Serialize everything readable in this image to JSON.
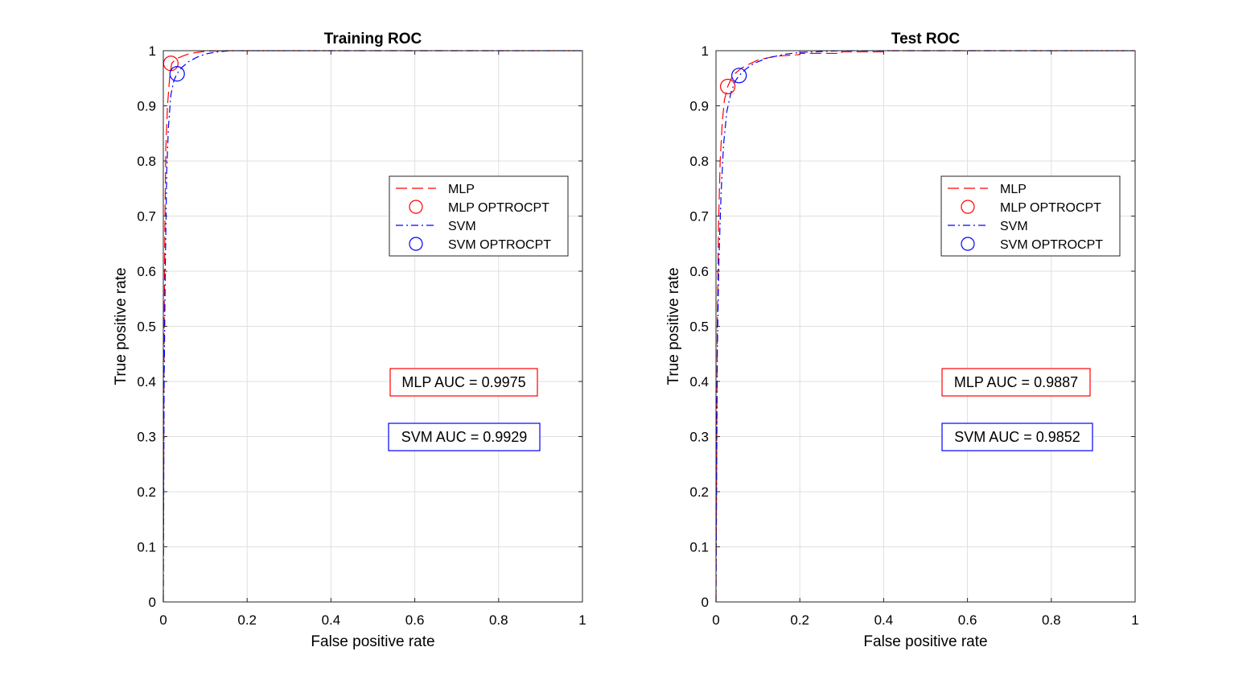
{
  "colors": {
    "mlp": "#ff0000",
    "svm": "#0000ff",
    "grid": "#dfdfdf",
    "axis": "#262626"
  },
  "chart_data": [
    {
      "type": "line",
      "title": "Training ROC",
      "xlabel": "False positive rate",
      "ylabel": "True positive rate",
      "xlim": [
        0,
        1
      ],
      "ylim": [
        0,
        1
      ],
      "grid": true,
      "xticks": [
        "0",
        "0.2",
        "0.4",
        "0.6",
        "0.8",
        "1"
      ],
      "yticks": [
        "0",
        "0.1",
        "0.2",
        "0.3",
        "0.4",
        "0.5",
        "0.6",
        "0.7",
        "0.8",
        "0.9",
        "1"
      ],
      "legend_position": "middle-right",
      "legend": [
        "MLP",
        "MLP OPTROCPT",
        "SVM",
        "SVM OPTROCPT"
      ],
      "series": [
        {
          "name": "MLP",
          "style": "dashed",
          "color": "#ff0000",
          "x": [
            0,
            0.002,
            0.004,
            0.006,
            0.01,
            0.015,
            0.02,
            0.03,
            0.045,
            0.06,
            0.08,
            0.1,
            0.15,
            0.3,
            0.6,
            1
          ],
          "y": [
            0,
            0.5,
            0.7,
            0.82,
            0.9,
            0.95,
            0.977,
            0.985,
            0.99,
            0.994,
            0.997,
            0.999,
            1,
            1,
            1,
            1
          ]
        },
        {
          "name": "SVM",
          "style": "dashdot",
          "color": "#0000ff",
          "x": [
            0,
            0.002,
            0.005,
            0.008,
            0.012,
            0.018,
            0.025,
            0.032,
            0.045,
            0.06,
            0.08,
            0.1,
            0.13,
            0.16,
            0.3,
            0.6,
            1
          ],
          "y": [
            0,
            0.4,
            0.62,
            0.78,
            0.86,
            0.92,
            0.945,
            0.958,
            0.97,
            0.98,
            0.988,
            0.994,
            0.998,
            1,
            1,
            1,
            1
          ]
        }
      ],
      "optimal_points": [
        {
          "name": "MLP OPTROCPT",
          "x": 0.018,
          "y": 0.977,
          "color": "#ff0000"
        },
        {
          "name": "SVM OPTROCPT",
          "x": 0.033,
          "y": 0.958,
          "color": "#0000ff"
        }
      ],
      "annotations": [
        {
          "text": "MLP AUC = 0.9975",
          "color": "#ff0000"
        },
        {
          "text": "SVM AUC = 0.9929",
          "color": "#0000ff"
        }
      ]
    },
    {
      "type": "line",
      "title": "Test ROC",
      "xlabel": "False positive rate",
      "ylabel": "True positive rate",
      "xlim": [
        0,
        1
      ],
      "ylim": [
        0,
        1
      ],
      "grid": true,
      "xticks": [
        "0",
        "0.2",
        "0.4",
        "0.6",
        "0.8",
        "1"
      ],
      "yticks": [
        "0",
        "0.1",
        "0.2",
        "0.3",
        "0.4",
        "0.5",
        "0.6",
        "0.7",
        "0.8",
        "0.9",
        "1"
      ],
      "legend_position": "middle-right",
      "legend": [
        "MLP",
        "MLP OPTROCPT",
        "SVM",
        "SVM OPTROCPT"
      ],
      "series": [
        {
          "name": "MLP",
          "style": "dashed",
          "color": "#ff0000",
          "x": [
            0,
            0.003,
            0.006,
            0.01,
            0.015,
            0.02,
            0.028,
            0.04,
            0.06,
            0.08,
            0.1,
            0.14,
            0.2,
            0.2,
            0.3,
            0.3,
            0.4,
            0.4,
            0.55,
            0.7,
            1
          ],
          "y": [
            0,
            0.5,
            0.68,
            0.8,
            0.87,
            0.91,
            0.935,
            0.955,
            0.968,
            0.976,
            0.983,
            0.99,
            0.993,
            0.995,
            0.995,
            0.998,
            0.998,
            1,
            1,
            1,
            1
          ]
        },
        {
          "name": "SVM",
          "style": "dashdot",
          "color": "#0000ff",
          "x": [
            0,
            0.003,
            0.007,
            0.012,
            0.018,
            0.026,
            0.036,
            0.046,
            0.055,
            0.07,
            0.09,
            0.12,
            0.16,
            0.2,
            0.3,
            0.5,
            0.8,
            1
          ],
          "y": [
            0,
            0.45,
            0.62,
            0.74,
            0.83,
            0.89,
            0.925,
            0.945,
            0.955,
            0.966,
            0.977,
            0.986,
            0.993,
            0.997,
            1,
            1,
            1,
            1
          ]
        }
      ],
      "optimal_points": [
        {
          "name": "MLP OPTROCPT",
          "x": 0.028,
          "y": 0.935,
          "color": "#ff0000"
        },
        {
          "name": "SVM OPTROCPT",
          "x": 0.055,
          "y": 0.955,
          "color": "#0000ff"
        }
      ],
      "annotations": [
        {
          "text": "MLP AUC = 0.9887",
          "color": "#ff0000"
        },
        {
          "text": "SVM AUC = 0.9852",
          "color": "#0000ff"
        }
      ]
    }
  ]
}
